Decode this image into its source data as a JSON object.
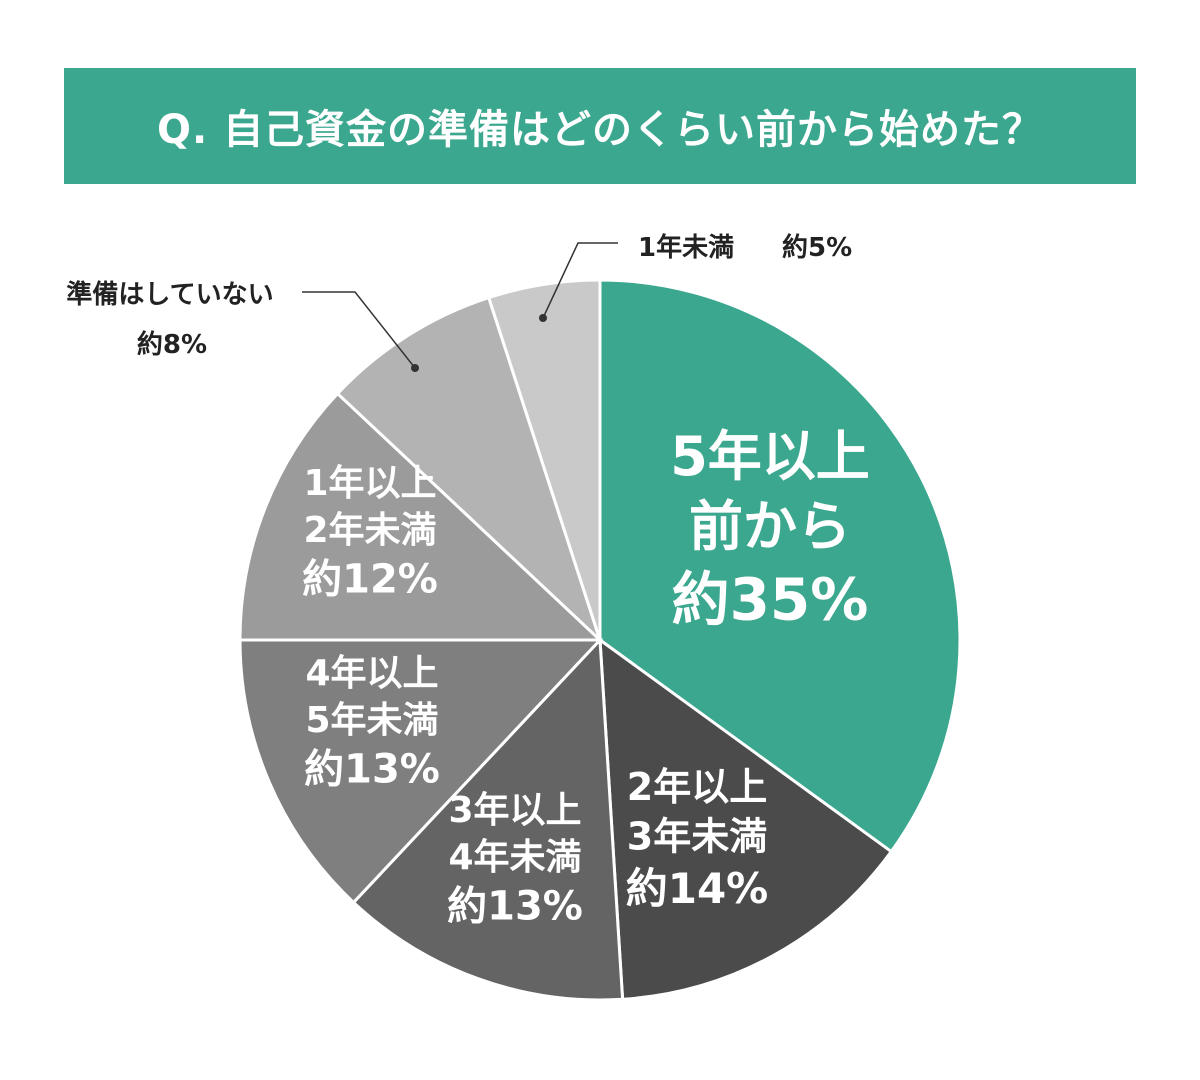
{
  "colors": {
    "title_bg": "#3aa78e",
    "title_text": "#ffffff",
    "slice_stroke": "#ffffff",
    "leader": "#333333"
  },
  "chart_data": {
    "type": "pie",
    "title": "Q. 自己資金の準備はどのくらい前から始めた？",
    "slices": [
      {
        "lines": [
          "5年以上",
          "前から"
        ],
        "value_label": "約35%",
        "value": 35,
        "color": "#3aa78e",
        "text_color": "#ffffff"
      },
      {
        "lines": [
          "2年以上",
          "3年未満"
        ],
        "value_label": "約14%",
        "value": 14,
        "color": "#4b4b4b",
        "text_color": "#ffffff"
      },
      {
        "lines": [
          "3年以上",
          "4年未満"
        ],
        "value_label": "約13%",
        "value": 13,
        "color": "#646464",
        "text_color": "#ffffff"
      },
      {
        "lines": [
          "4年以上",
          "5年未満"
        ],
        "value_label": "約13%",
        "value": 13,
        "color": "#7f7f7f",
        "text_color": "#ffffff"
      },
      {
        "lines": [
          "1年以上",
          "2年未満"
        ],
        "value_label": "約12%",
        "value": 12,
        "color": "#9b9b9b",
        "text_color": "#ffffff"
      },
      {
        "lines": [
          "準備はしていない"
        ],
        "value_label": "約8%",
        "value": 8,
        "color": "#b3b3b3",
        "text_color": "#222222",
        "outside": true
      },
      {
        "lines": [
          "1年未満"
        ],
        "value_label": "約5%",
        "value": 5,
        "color": "#c9c9c9",
        "text_color": "#222222",
        "outside": true
      }
    ]
  }
}
